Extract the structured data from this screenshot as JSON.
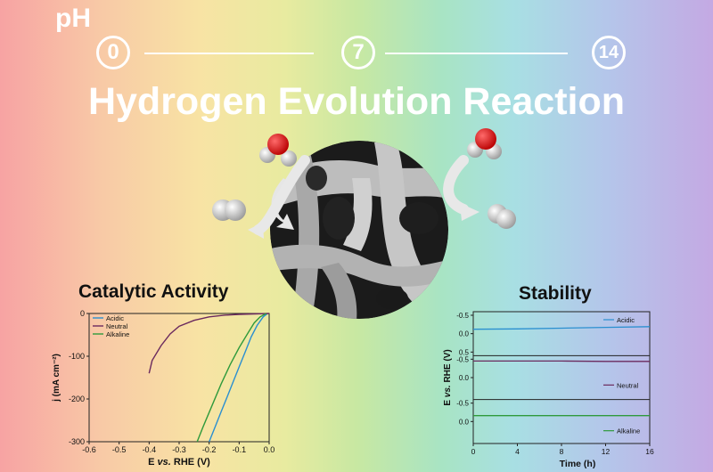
{
  "ph_scale": {
    "label": "pH",
    "markers": [
      "0",
      "7",
      "14"
    ]
  },
  "title": "Hydrogen Evolution Reaction",
  "left_panel": {
    "heading": "Catalytic Activity"
  },
  "right_panel": {
    "heading": "Stability"
  },
  "colors": {
    "acidic": "#2a8fd0",
    "neutral": "#6b2a5e",
    "alkaline": "#2f9a3c"
  },
  "chart_data": [
    {
      "type": "line",
      "title": "Catalytic Activity",
      "xlabel_parts": [
        "E ",
        "vs.",
        " RHE (V)"
      ],
      "ylabel": "j (mA cm⁻²)",
      "xlim": [
        -0.6,
        0.0
      ],
      "ylim": [
        -300,
        0
      ],
      "xticks": [
        "-0.6",
        "-0.5",
        "-0.4",
        "-0.3",
        "-0.2",
        "-0.1",
        "0.0"
      ],
      "yticks": [
        "0",
        "-100",
        "-200",
        "-300"
      ],
      "legend_position": "top-left",
      "series": [
        {
          "name": "Acidic",
          "color": "#2a8fd0",
          "x": [
            -0.005,
            -0.02,
            -0.04,
            -0.06,
            -0.08,
            -0.1,
            -0.12,
            -0.14,
            -0.16,
            -0.18,
            -0.2
          ],
          "y": [
            0,
            -8,
            -28,
            -55,
            -90,
            -125,
            -160,
            -195,
            -230,
            -265,
            -300
          ]
        },
        {
          "name": "Neutral",
          "color": "#6b2a5e",
          "x": [
            -0.0,
            -0.05,
            -0.1,
            -0.15,
            -0.2,
            -0.25,
            -0.3,
            -0.33,
            -0.36,
            -0.39,
            -0.4
          ],
          "y": [
            0,
            -1,
            -2,
            -4,
            -8,
            -16,
            -30,
            -48,
            -75,
            -110,
            -140
          ]
        },
        {
          "name": "Alkaline",
          "color": "#2f9a3c",
          "x": [
            -0.01,
            -0.03,
            -0.05,
            -0.07,
            -0.1,
            -0.13,
            -0.16,
            -0.19,
            -0.22,
            -0.24
          ],
          "y": [
            0,
            -8,
            -22,
            -45,
            -80,
            -120,
            -165,
            -215,
            -265,
            -300
          ]
        }
      ]
    },
    {
      "type": "line",
      "title": "Stability",
      "xlabel": "Time (h)",
      "ylabel_parts": [
        "E ",
        "vs.",
        " RHE (V)"
      ],
      "xlim": [
        0,
        16
      ],
      "xticks": [
        "0",
        "4",
        "8",
        "12",
        "16"
      ],
      "panels": [
        {
          "name": "Acidic",
          "color": "#2a8fd0",
          "ylim": [
            -0.5,
            0.5
          ],
          "yticks": [
            "-0.5",
            "0.0",
            "0.5"
          ],
          "x": [
            0,
            4,
            8,
            12,
            16
          ],
          "y": [
            -0.12,
            -0.13,
            -0.15,
            -0.17,
            -0.19
          ]
        },
        {
          "name": "Neutral",
          "color": "#6b2a5e",
          "ylim": [
            -0.5,
            0.5
          ],
          "yticks": [
            "-0.5",
            "0.0"
          ],
          "x": [
            0,
            4,
            8,
            12,
            16
          ],
          "y": [
            -0.45,
            -0.45,
            -0.45,
            -0.44,
            -0.44
          ]
        },
        {
          "name": "Alkaline",
          "color": "#2f9a3c",
          "ylim": [
            -0.5,
            0.5
          ],
          "yticks": [
            "-0.5",
            "0.0"
          ],
          "x": [
            0,
            4,
            8,
            12,
            16
          ],
          "y": [
            -0.16,
            -0.16,
            -0.16,
            -0.16,
            -0.16
          ]
        }
      ]
    }
  ]
}
